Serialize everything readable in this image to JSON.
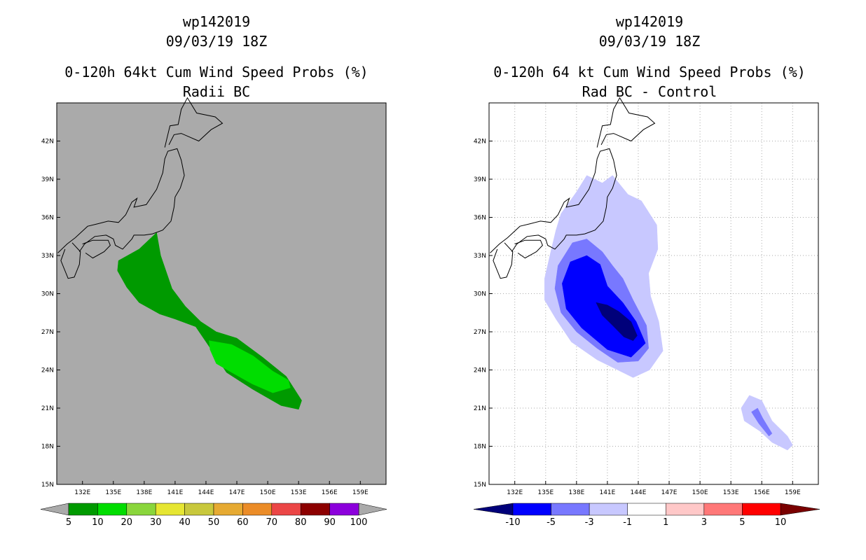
{
  "chart_data": [
    {
      "type": "filled-contour-map",
      "titles": [
        "wp142019",
        "09/03/19 18Z",
        "0-120h 64kt Cum Wind Speed Probs (%)",
        "Radii BC"
      ],
      "xlabels": [
        "132E",
        "135E",
        "138E",
        "141E",
        "144E",
        "147E",
        "150E",
        "153E",
        "156E",
        "159E"
      ],
      "ylabels": [
        "15N",
        "18N",
        "21N",
        "24N",
        "27N",
        "30N",
        "33N",
        "36N",
        "39N",
        "42N"
      ],
      "xlim": [
        129.5,
        161.5
      ],
      "ylim": [
        15,
        45
      ],
      "background": "#aaaaaa",
      "grid": false,
      "contour_levels": [
        {
          "min": 5,
          "color": "#009a00",
          "polygon": [
            [
              135.5,
              32.6
            ],
            [
              137.5,
              33.5
            ],
            [
              139.2,
              34.8
            ],
            [
              139.6,
              33.0
            ],
            [
              140.7,
              30.4
            ],
            [
              142.0,
              29.0
            ],
            [
              143.5,
              27.8
            ],
            [
              145.0,
              27.0
            ],
            [
              147.0,
              26.5
            ],
            [
              149.5,
              25.0
            ],
            [
              151.8,
              23.5
            ],
            [
              153.3,
              21.6
            ],
            [
              153.0,
              20.9
            ],
            [
              151.3,
              21.2
            ],
            [
              148.5,
              22.5
            ],
            [
              146.0,
              23.8
            ],
            [
              144.6,
              25.5
            ],
            [
              143.0,
              27.4
            ],
            [
              141.0,
              28.0
            ],
            [
              139.5,
              28.4
            ],
            [
              137.5,
              29.3
            ],
            [
              136.3,
              30.5
            ],
            [
              135.4,
              31.8
            ]
          ]
        },
        {
          "min": 10,
          "color": "#00dd00",
          "polygon": [
            [
              144.3,
              26.3
            ],
            [
              146.5,
              26.0
            ],
            [
              148.6,
              25.1
            ],
            [
              150.5,
              23.9
            ],
            [
              152.0,
              23.2
            ],
            [
              152.2,
              22.6
            ],
            [
              150.5,
              22.2
            ],
            [
              148.5,
              22.9
            ],
            [
              146.5,
              23.8
            ],
            [
              145.0,
              24.5
            ],
            [
              144.4,
              25.6
            ]
          ]
        }
      ]
    },
    {
      "type": "filled-contour-map",
      "titles": [
        "wp142019",
        "09/03/19 18Z",
        "0-120h 64 kt Cum Wind Speed Probs (%)",
        "Rad BC - Control"
      ],
      "xlabels": [
        "132E",
        "135E",
        "138E",
        "141E",
        "144E",
        "147E",
        "150E",
        "153E",
        "156E",
        "159E"
      ],
      "ylabels": [
        "15N",
        "18N",
        "21N",
        "24N",
        "27N",
        "30N",
        "33N",
        "36N",
        "39N",
        "42N"
      ],
      "xlim": [
        129.5,
        161.5
      ],
      "ylim": [
        15,
        45
      ],
      "background": "#ffffff",
      "grid": true,
      "contour_levels": [
        {
          "max": -1,
          "color": "#c8c8ff",
          "polygon": [
            [
              136.5,
              36.3
            ],
            [
              138.0,
              38.0
            ],
            [
              139.0,
              39.3
            ],
            [
              140.5,
              38.7
            ],
            [
              141.5,
              39.3
            ],
            [
              143.0,
              37.8
            ],
            [
              144.3,
              37.3
            ],
            [
              145.8,
              35.4
            ],
            [
              145.9,
              33.5
            ],
            [
              145.0,
              31.6
            ],
            [
              145.2,
              29.8
            ],
            [
              146.0,
              27.8
            ],
            [
              146.4,
              25.5
            ],
            [
              145.1,
              24.0
            ],
            [
              143.5,
              23.4
            ],
            [
              142.0,
              24.0
            ],
            [
              140.0,
              24.8
            ],
            [
              137.5,
              26.2
            ],
            [
              136.0,
              28.0
            ],
            [
              134.9,
              29.5
            ],
            [
              134.9,
              31.2
            ],
            [
              135.5,
              33.3
            ],
            [
              136.0,
              35.0
            ]
          ]
        },
        {
          "max": -3,
          "color": "#7878ff",
          "polygon": [
            [
              137.6,
              34.0
            ],
            [
              139.0,
              34.3
            ],
            [
              140.5,
              33.3
            ],
            [
              141.5,
              32.2
            ],
            [
              142.5,
              31.2
            ],
            [
              143.5,
              29.5
            ],
            [
              144.8,
              27.5
            ],
            [
              145.0,
              25.7
            ],
            [
              144.0,
              24.7
            ],
            [
              142.0,
              24.6
            ],
            [
              140.0,
              25.7
            ],
            [
              138.0,
              27.0
            ],
            [
              136.5,
              28.5
            ],
            [
              135.9,
              30.4
            ],
            [
              136.2,
              32.2
            ]
          ]
        },
        {
          "max": -5,
          "color": "#0000ff",
          "polygon": [
            [
              137.4,
              32.5
            ],
            [
              139.0,
              33.0
            ],
            [
              140.3,
              32.3
            ],
            [
              141.0,
              30.6
            ],
            [
              142.5,
              29.3
            ],
            [
              143.8,
              27.8
            ],
            [
              144.7,
              26.1
            ],
            [
              143.3,
              25.0
            ],
            [
              141.0,
              25.6
            ],
            [
              138.5,
              27.3
            ],
            [
              137.0,
              28.8
            ],
            [
              136.6,
              30.8
            ]
          ]
        },
        {
          "max": -10,
          "color": "#00007a",
          "polygon": [
            [
              139.9,
              29.3
            ],
            [
              141.0,
              29.1
            ],
            [
              142.1,
              28.6
            ],
            [
              143.3,
              27.8
            ],
            [
              143.9,
              26.7
            ],
            [
              143.5,
              26.3
            ],
            [
              142.6,
              26.6
            ],
            [
              141.5,
              27.5
            ],
            [
              140.5,
              28.3
            ]
          ]
        },
        {
          "max": -1,
          "color": "#c8c8ff",
          "polygon": [
            [
              154.0,
              21.0
            ],
            [
              154.8,
              22.0
            ],
            [
              156.0,
              21.6
            ],
            [
              157.0,
              20.0
            ],
            [
              158.5,
              18.8
            ],
            [
              159.0,
              18.1
            ],
            [
              158.5,
              17.7
            ],
            [
              157.0,
              18.3
            ],
            [
              155.8,
              19.2
            ],
            [
              154.3,
              20.0
            ]
          ]
        },
        {
          "max": -3,
          "color": "#7878ff",
          "polygon": [
            [
              155.0,
              20.7
            ],
            [
              155.6,
              21.0
            ],
            [
              156.1,
              20.2
            ],
            [
              157.0,
              19.0
            ],
            [
              156.7,
              18.8
            ],
            [
              155.7,
              19.8
            ]
          ]
        }
      ]
    }
  ],
  "colorbars": [
    {
      "labels": [
        "5",
        "10",
        "20",
        "30",
        "40",
        "50",
        "60",
        "70",
        "80",
        "90",
        "100"
      ],
      "colors": [
        "#009a00",
        "#00dd00",
        "#8ad63c",
        "#e6e632",
        "#c8c83c",
        "#e6aa32",
        "#eb8c28",
        "#eb4646",
        "#8c0000",
        "#8c00dc"
      ],
      "end_color": "#aaaaaa"
    },
    {
      "labels": [
        "-10",
        "-5",
        "-3",
        "-1",
        "1",
        "3",
        "5",
        "10"
      ],
      "colors": [
        "#0000ff",
        "#7878ff",
        "#c8c8ff",
        "#ffffff",
        "#ffc8c8",
        "#ff7878",
        "#ff0000"
      ],
      "low_color": "#00007a",
      "high_color": "#7a0000"
    }
  ]
}
